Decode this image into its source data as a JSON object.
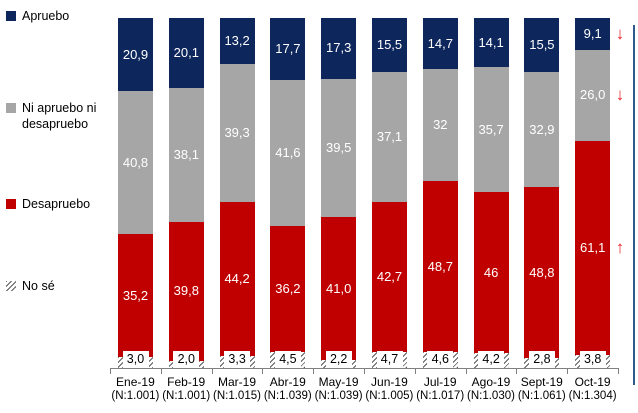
{
  "colors": {
    "apruebo": "#0d265c",
    "ni_apruebo": "#a6a6a6",
    "desapruebo": "#c00000",
    "arrow": "#e8262a",
    "highlight_line": "#2e5a8f",
    "axis": "#7f7f7f"
  },
  "legend": [
    {
      "label": "Apruebo",
      "swatch": "apruebo",
      "style": "solid"
    },
    {
      "label": "Ni apruebo ni desapruebo",
      "swatch": "ni_apruebo",
      "style": "solid"
    },
    {
      "label": "Desapruebo",
      "swatch": "desapruebo",
      "style": "solid"
    },
    {
      "label": "No sé",
      "swatch": "hatch",
      "style": "hatch"
    }
  ],
  "chart_data": {
    "type": "bar",
    "subtype": "stacked-100",
    "unit": "%",
    "title": "",
    "xlabel": "",
    "ylabel": "",
    "ylim": [
      0,
      100
    ],
    "grid": false,
    "legend_position": "left",
    "categories": [
      "Ene-19",
      "Feb-19",
      "Mar-19",
      "Abr-19",
      "May-19",
      "Jun-19",
      "Jul-19",
      "Ago-19",
      "Sept-19",
      "Oct-19"
    ],
    "sample_sizes": [
      "(N:1.001)",
      "(N:1.001)",
      "(N:1.015)",
      "(N:1.039)",
      "(N:1.039)",
      "(N:1.005)",
      "(N:1.017)",
      "(N:1.030)",
      "(N:1.061)",
      "(N:1.304)"
    ],
    "series": [
      {
        "name": "Apruebo",
        "color": "#0d265c",
        "values": [
          20.9,
          20.1,
          13.2,
          17.7,
          17.3,
          15.5,
          14.7,
          14.1,
          15.5,
          9.1
        ],
        "labels": [
          "20,9",
          "20,1",
          "13,2",
          "17,7",
          "17,3",
          "15,5",
          "14,7",
          "14,1",
          "15,5",
          "9,1"
        ]
      },
      {
        "name": "Ni apruebo ni desapruebo",
        "color": "#a6a6a6",
        "values": [
          40.8,
          38.1,
          39.3,
          41.6,
          39.5,
          37.1,
          32,
          35.7,
          32.9,
          26.0
        ],
        "labels": [
          "40,8",
          "38,1",
          "39,3",
          "41,6",
          "39,5",
          "37,1",
          "32",
          "35,7",
          "32,9",
          "26,0"
        ]
      },
      {
        "name": "Desapruebo",
        "color": "#c00000",
        "values": [
          35.2,
          39.8,
          44.2,
          36.2,
          41.0,
          42.7,
          48.7,
          46,
          48.8,
          61.1
        ],
        "labels": [
          "35,2",
          "39,8",
          "44,2",
          "36,2",
          "41,0",
          "42,7",
          "48,7",
          "46",
          "48,8",
          "61,1"
        ]
      },
      {
        "name": "No sé",
        "pattern": "hatch",
        "values": [
          3.0,
          2.0,
          3.3,
          4.5,
          2.2,
          4.7,
          4.6,
          4.2,
          2.8,
          3.8
        ],
        "labels": [
          "3,0",
          "2,0",
          "3,3",
          "4,5",
          "2,2",
          "4,7",
          "4,6",
          "4,2",
          "2,8",
          "3,8"
        ]
      }
    ],
    "annotations": [
      {
        "series": "Apruebo",
        "category": "Oct-19",
        "arrow": "down",
        "glyph": "↓"
      },
      {
        "series": "Ni apruebo ni desapruebo",
        "category": "Oct-19",
        "arrow": "down",
        "glyph": "↓"
      },
      {
        "series": "Desapruebo",
        "category": "Oct-19",
        "arrow": "up",
        "glyph": "↑"
      }
    ]
  }
}
